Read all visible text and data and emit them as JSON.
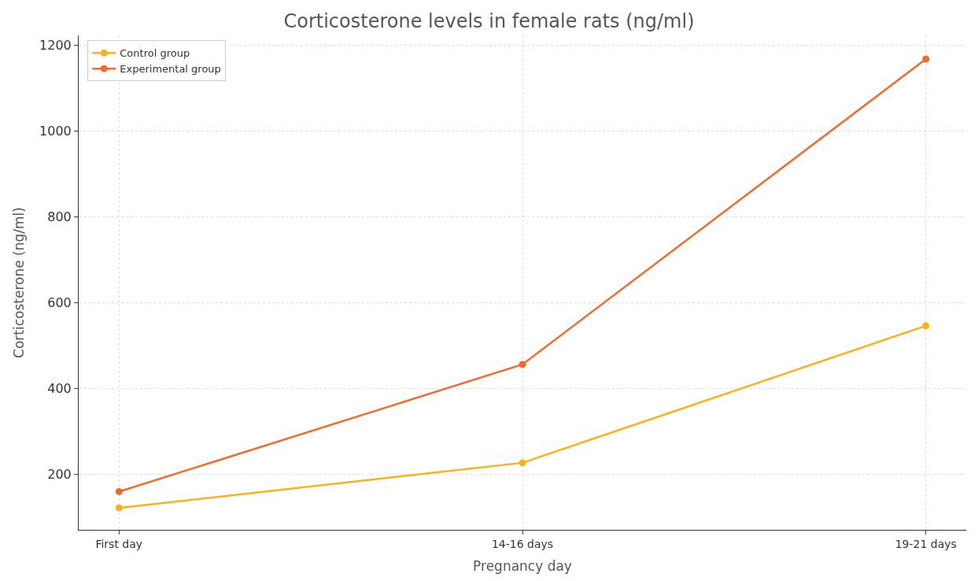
{
  "chart_data": {
    "type": "line",
    "title": "Corticosterone levels in female rats (ng/ml)",
    "xlabel": "Pregnancy day",
    "ylabel": "Corticosterone (ng/ml)",
    "categories": [
      "First day",
      "14-16 days",
      "19-21 days"
    ],
    "series": [
      {
        "name": "Control group",
        "color": "#fbb117",
        "values": [
          122,
          227,
          546
        ]
      },
      {
        "name": "Experimental group",
        "color": "#f26b2a",
        "values": [
          160,
          456,
          1167
        ]
      }
    ],
    "ylim": [
      71,
      1222
    ],
    "yticks": [
      200,
      400,
      600,
      800,
      1000,
      1200
    ],
    "grid": true,
    "legend": "top left",
    "marker": "circle",
    "line_style": "solid"
  }
}
